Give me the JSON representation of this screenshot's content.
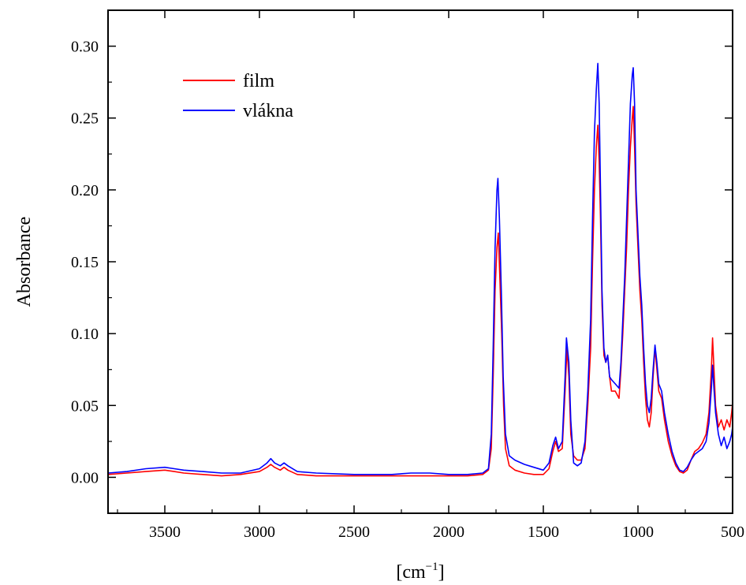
{
  "chart_data": {
    "type": "line",
    "xlabel": "[cm",
    "xlabel_sup": "−1",
    "xlabel_close": "]",
    "ylabel": "Absorbance",
    "xlim": [
      3800,
      500
    ],
    "ylim": [
      -0.025,
      0.325
    ],
    "x_reversed": true,
    "grid": false,
    "legend_position": "top-left",
    "x_ticks": [
      3500,
      3000,
      2500,
      2000,
      1500,
      1000,
      500
    ],
    "x_tick_labels": [
      "3500",
      "3000",
      "2500",
      "2000",
      "1500",
      "1000",
      "500"
    ],
    "y_ticks": [
      0.0,
      0.05,
      0.1,
      0.15,
      0.2,
      0.25,
      0.3
    ],
    "y_tick_labels": [
      "0.00",
      "0.05",
      "0.10",
      "0.15",
      "0.20",
      "0.25",
      "0.30"
    ],
    "series": [
      {
        "name": "film",
        "color": "#ff0000",
        "points": [
          [
            3800,
            0.002
          ],
          [
            3700,
            0.003
          ],
          [
            3600,
            0.004
          ],
          [
            3500,
            0.005
          ],
          [
            3450,
            0.004
          ],
          [
            3400,
            0.003
          ],
          [
            3300,
            0.002
          ],
          [
            3200,
            0.001
          ],
          [
            3100,
            0.002
          ],
          [
            3000,
            0.004
          ],
          [
            2960,
            0.007
          ],
          [
            2940,
            0.009
          ],
          [
            2920,
            0.007
          ],
          [
            2890,
            0.005
          ],
          [
            2870,
            0.007
          ],
          [
            2850,
            0.005
          ],
          [
            2800,
            0.002
          ],
          [
            2700,
            0.001
          ],
          [
            2500,
            0.001
          ],
          [
            2300,
            0.001
          ],
          [
            2100,
            0.001
          ],
          [
            2000,
            0.001
          ],
          [
            1900,
            0.001
          ],
          [
            1820,
            0.002
          ],
          [
            1790,
            0.005
          ],
          [
            1775,
            0.02
          ],
          [
            1765,
            0.07
          ],
          [
            1755,
            0.13
          ],
          [
            1745,
            0.16
          ],
          [
            1738,
            0.17
          ],
          [
            1730,
            0.14
          ],
          [
            1720,
            0.1
          ],
          [
            1710,
            0.05
          ],
          [
            1700,
            0.02
          ],
          [
            1680,
            0.008
          ],
          [
            1650,
            0.005
          ],
          [
            1600,
            0.003
          ],
          [
            1550,
            0.002
          ],
          [
            1500,
            0.002
          ],
          [
            1470,
            0.006
          ],
          [
            1450,
            0.018
          ],
          [
            1435,
            0.025
          ],
          [
            1420,
            0.018
          ],
          [
            1400,
            0.02
          ],
          [
            1385,
            0.06
          ],
          [
            1375,
            0.09
          ],
          [
            1365,
            0.07
          ],
          [
            1355,
            0.03
          ],
          [
            1340,
            0.015
          ],
          [
            1320,
            0.012
          ],
          [
            1300,
            0.012
          ],
          [
            1280,
            0.02
          ],
          [
            1265,
            0.05
          ],
          [
            1250,
            0.09
          ],
          [
            1240,
            0.15
          ],
          [
            1230,
            0.2
          ],
          [
            1220,
            0.23
          ],
          [
            1212,
            0.245
          ],
          [
            1205,
            0.22
          ],
          [
            1198,
            0.18
          ],
          [
            1190,
            0.12
          ],
          [
            1180,
            0.085
          ],
          [
            1170,
            0.08
          ],
          [
            1160,
            0.085
          ],
          [
            1150,
            0.07
          ],
          [
            1140,
            0.06
          ],
          [
            1120,
            0.06
          ],
          [
            1100,
            0.055
          ],
          [
            1090,
            0.075
          ],
          [
            1080,
            0.1
          ],
          [
            1070,
            0.13
          ],
          [
            1060,
            0.16
          ],
          [
            1050,
            0.2
          ],
          [
            1040,
            0.23
          ],
          [
            1030,
            0.25
          ],
          [
            1025,
            0.258
          ],
          [
            1018,
            0.23
          ],
          [
            1010,
            0.19
          ],
          [
            1000,
            0.16
          ],
          [
            990,
            0.13
          ],
          [
            980,
            0.11
          ],
          [
            970,
            0.08
          ],
          [
            960,
            0.055
          ],
          [
            950,
            0.04
          ],
          [
            940,
            0.035
          ],
          [
            930,
            0.045
          ],
          [
            920,
            0.07
          ],
          [
            910,
            0.09
          ],
          [
            900,
            0.075
          ],
          [
            890,
            0.06
          ],
          [
            875,
            0.055
          ],
          [
            860,
            0.04
          ],
          [
            840,
            0.025
          ],
          [
            820,
            0.015
          ],
          [
            800,
            0.008
          ],
          [
            780,
            0.004
          ],
          [
            760,
            0.003
          ],
          [
            740,
            0.005
          ],
          [
            720,
            0.012
          ],
          [
            700,
            0.018
          ],
          [
            680,
            0.02
          ],
          [
            660,
            0.024
          ],
          [
            640,
            0.03
          ],
          [
            625,
            0.045
          ],
          [
            612,
            0.075
          ],
          [
            606,
            0.097
          ],
          [
            600,
            0.08
          ],
          [
            590,
            0.05
          ],
          [
            575,
            0.035
          ],
          [
            560,
            0.04
          ],
          [
            545,
            0.033
          ],
          [
            530,
            0.04
          ],
          [
            515,
            0.035
          ],
          [
            505,
            0.045
          ],
          [
            500,
            0.052
          ]
        ]
      },
      {
        "name": "vlákna",
        "color": "#0000ff",
        "points": [
          [
            3800,
            0.003
          ],
          [
            3700,
            0.004
          ],
          [
            3600,
            0.006
          ],
          [
            3500,
            0.007
          ],
          [
            3450,
            0.006
          ],
          [
            3400,
            0.005
          ],
          [
            3300,
            0.004
          ],
          [
            3200,
            0.003
          ],
          [
            3100,
            0.003
          ],
          [
            3000,
            0.006
          ],
          [
            2960,
            0.01
          ],
          [
            2940,
            0.013
          ],
          [
            2920,
            0.01
          ],
          [
            2890,
            0.008
          ],
          [
            2870,
            0.01
          ],
          [
            2850,
            0.008
          ],
          [
            2800,
            0.004
          ],
          [
            2700,
            0.003
          ],
          [
            2500,
            0.002
          ],
          [
            2300,
            0.002
          ],
          [
            2200,
            0.003
          ],
          [
            2100,
            0.003
          ],
          [
            2000,
            0.002
          ],
          [
            1900,
            0.002
          ],
          [
            1820,
            0.003
          ],
          [
            1790,
            0.006
          ],
          [
            1775,
            0.03
          ],
          [
            1765,
            0.09
          ],
          [
            1755,
            0.16
          ],
          [
            1745,
            0.2
          ],
          [
            1740,
            0.208
          ],
          [
            1732,
            0.18
          ],
          [
            1722,
            0.13
          ],
          [
            1712,
            0.07
          ],
          [
            1700,
            0.03
          ],
          [
            1680,
            0.015
          ],
          [
            1650,
            0.012
          ],
          [
            1600,
            0.009
          ],
          [
            1550,
            0.007
          ],
          [
            1500,
            0.005
          ],
          [
            1470,
            0.01
          ],
          [
            1450,
            0.022
          ],
          [
            1435,
            0.028
          ],
          [
            1420,
            0.02
          ],
          [
            1400,
            0.025
          ],
          [
            1385,
            0.07
          ],
          [
            1378,
            0.097
          ],
          [
            1365,
            0.08
          ],
          [
            1355,
            0.04
          ],
          [
            1340,
            0.01
          ],
          [
            1320,
            0.008
          ],
          [
            1300,
            0.01
          ],
          [
            1280,
            0.025
          ],
          [
            1265,
            0.06
          ],
          [
            1250,
            0.11
          ],
          [
            1240,
            0.18
          ],
          [
            1230,
            0.24
          ],
          [
            1220,
            0.27
          ],
          [
            1212,
            0.288
          ],
          [
            1205,
            0.26
          ],
          [
            1198,
            0.2
          ],
          [
            1190,
            0.13
          ],
          [
            1180,
            0.09
          ],
          [
            1170,
            0.08
          ],
          [
            1160,
            0.085
          ],
          [
            1150,
            0.07
          ],
          [
            1140,
            0.068
          ],
          [
            1120,
            0.065
          ],
          [
            1100,
            0.062
          ],
          [
            1090,
            0.08
          ],
          [
            1080,
            0.11
          ],
          [
            1070,
            0.14
          ],
          [
            1060,
            0.18
          ],
          [
            1050,
            0.22
          ],
          [
            1040,
            0.26
          ],
          [
            1030,
            0.28
          ],
          [
            1025,
            0.285
          ],
          [
            1018,
            0.26
          ],
          [
            1010,
            0.2
          ],
          [
            1000,
            0.17
          ],
          [
            990,
            0.14
          ],
          [
            980,
            0.12
          ],
          [
            970,
            0.09
          ],
          [
            960,
            0.065
          ],
          [
            950,
            0.05
          ],
          [
            940,
            0.045
          ],
          [
            930,
            0.055
          ],
          [
            920,
            0.075
          ],
          [
            910,
            0.092
          ],
          [
            900,
            0.08
          ],
          [
            890,
            0.065
          ],
          [
            875,
            0.06
          ],
          [
            860,
            0.045
          ],
          [
            840,
            0.03
          ],
          [
            820,
            0.018
          ],
          [
            800,
            0.01
          ],
          [
            780,
            0.005
          ],
          [
            760,
            0.004
          ],
          [
            740,
            0.007
          ],
          [
            720,
            0.012
          ],
          [
            700,
            0.016
          ],
          [
            680,
            0.018
          ],
          [
            660,
            0.02
          ],
          [
            640,
            0.025
          ],
          [
            625,
            0.038
          ],
          [
            612,
            0.062
          ],
          [
            606,
            0.078
          ],
          [
            600,
            0.065
          ],
          [
            590,
            0.045
          ],
          [
            575,
            0.03
          ],
          [
            560,
            0.022
          ],
          [
            545,
            0.028
          ],
          [
            530,
            0.02
          ],
          [
            515,
            0.025
          ],
          [
            505,
            0.03
          ],
          [
            500,
            0.035
          ]
        ]
      }
    ]
  }
}
